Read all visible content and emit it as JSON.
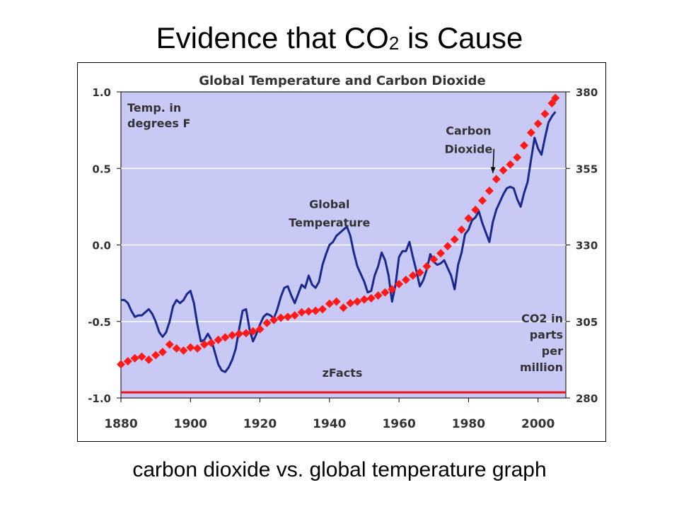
{
  "slide": {
    "title_prefix": "Evidence that CO",
    "title_sub": "2",
    "title_suffix": " is Cause",
    "caption": "carbon dioxide vs. global temperature graph"
  },
  "chart_data": {
    "type": "line",
    "title": "Global Temperature and Carbon Dioxide",
    "xlabel": "",
    "xlim": [
      1880,
      2008
    ],
    "x_ticks": [
      "1880",
      "1900",
      "1920",
      "1940",
      "1960",
      "1980",
      "2000"
    ],
    "y_left": {
      "label_lines": [
        "Temp. in",
        "degrees F"
      ],
      "ylim": [
        -1.0,
        1.0
      ],
      "ticks": [
        "1.0",
        "0.5",
        "0.0",
        "-0.5",
        "-1.0"
      ]
    },
    "y_right": {
      "label_lines": [
        "CO2 in",
        "parts",
        "per",
        "million"
      ],
      "ylim": [
        280,
        380
      ],
      "ticks": [
        "380",
        "355",
        "330",
        "305",
        "280"
      ]
    },
    "watermark": "zFacts",
    "colors": {
      "temperature": "#1a2a8c",
      "co2": "#ff1a1a",
      "baseline": "#ee1111",
      "plot_bg": "#c9c9f5",
      "grid": "#ffffff"
    },
    "annotations": [
      {
        "lines": [
          "Global",
          "Temperature"
        ],
        "year": 1940,
        "value": 0.24,
        "align": "middle"
      },
      {
        "lines": [
          "Carbon",
          "Dioxide"
        ],
        "year": 1980,
        "value": 0.72,
        "align": "middle",
        "arrow_to": [
          1987,
          0.47
        ]
      }
    ],
    "series": [
      {
        "name": "Global Temperature",
        "axis": "left",
        "x": [
          1880,
          1881,
          1882,
          1883,
          1884,
          1885,
          1886,
          1887,
          1888,
          1889,
          1890,
          1891,
          1892,
          1893,
          1894,
          1895,
          1896,
          1897,
          1898,
          1899,
          1900,
          1901,
          1902,
          1903,
          1904,
          1905,
          1906,
          1907,
          1908,
          1909,
          1910,
          1911,
          1912,
          1913,
          1914,
          1915,
          1916,
          1917,
          1918,
          1919,
          1920,
          1921,
          1922,
          1923,
          1924,
          1925,
          1926,
          1927,
          1928,
          1929,
          1930,
          1931,
          1932,
          1933,
          1934,
          1935,
          1936,
          1937,
          1938,
          1939,
          1940,
          1941,
          1942,
          1943,
          1944,
          1945,
          1946,
          1947,
          1948,
          1949,
          1950,
          1951,
          1952,
          1953,
          1954,
          1955,
          1956,
          1957,
          1958,
          1959,
          1960,
          1961,
          1962,
          1963,
          1964,
          1965,
          1966,
          1967,
          1968,
          1969,
          1970,
          1971,
          1972,
          1973,
          1974,
          1975,
          1976,
          1977,
          1978,
          1979,
          1980,
          1981,
          1982,
          1983,
          1984,
          1985,
          1986,
          1987,
          1988,
          1989,
          1990,
          1991,
          1992,
          1993,
          1994,
          1995,
          1996,
          1997,
          1998,
          1999,
          2000,
          2001,
          2002,
          2003,
          2004,
          2005
        ],
        "values": [
          -0.36,
          -0.36,
          -0.38,
          -0.43,
          -0.47,
          -0.46,
          -0.46,
          -0.44,
          -0.42,
          -0.45,
          -0.5,
          -0.57,
          -0.6,
          -0.57,
          -0.5,
          -0.4,
          -0.36,
          -0.38,
          -0.36,
          -0.32,
          -0.3,
          -0.38,
          -0.52,
          -0.63,
          -0.62,
          -0.58,
          -0.62,
          -0.7,
          -0.78,
          -0.82,
          -0.83,
          -0.8,
          -0.75,
          -0.68,
          -0.55,
          -0.43,
          -0.42,
          -0.55,
          -0.63,
          -0.58,
          -0.52,
          -0.47,
          -0.45,
          -0.46,
          -0.48,
          -0.42,
          -0.34,
          -0.28,
          -0.27,
          -0.33,
          -0.38,
          -0.32,
          -0.26,
          -0.28,
          -0.2,
          -0.26,
          -0.28,
          -0.24,
          -0.13,
          -0.06,
          0.0,
          0.02,
          0.06,
          0.08,
          0.1,
          0.12,
          0.06,
          -0.05,
          -0.14,
          -0.19,
          -0.24,
          -0.31,
          -0.3,
          -0.2,
          -0.14,
          -0.05,
          -0.1,
          -0.2,
          -0.37,
          -0.26,
          -0.08,
          -0.04,
          -0.04,
          0.02,
          -0.08,
          -0.17,
          -0.27,
          -0.23,
          -0.16,
          -0.06,
          -0.11,
          -0.13,
          -0.12,
          -0.1,
          -0.15,
          -0.2,
          -0.29,
          -0.13,
          -0.05,
          0.07,
          0.1,
          0.16,
          0.18,
          0.22,
          0.14,
          0.08,
          0.02,
          0.15,
          0.23,
          0.28,
          0.33,
          0.37,
          0.38,
          0.37,
          0.3,
          0.25,
          0.34,
          0.41,
          0.56,
          0.7,
          0.63,
          0.59,
          0.7,
          0.8,
          0.84,
          0.87
        ]
      },
      {
        "name": "Carbon Dioxide",
        "axis": "right",
        "x": [
          1880,
          1882,
          1884,
          1886,
          1888,
          1890,
          1892,
          1894,
          1896,
          1898,
          1900,
          1902,
          1904,
          1906,
          1908,
          1910,
          1912,
          1914,
          1916,
          1918,
          1920,
          1922,
          1924,
          1926,
          1928,
          1930,
          1932,
          1934,
          1936,
          1938,
          1940,
          1942,
          1944,
          1946,
          1948,
          1950,
          1952,
          1954,
          1956,
          1958,
          1960,
          1962,
          1964,
          1966,
          1968,
          1970,
          1972,
          1974,
          1976,
          1978,
          1980,
          1982,
          1984,
          1986,
          1988,
          1990,
          1992,
          1994,
          1996,
          1998,
          2000,
          2002,
          2004,
          2005
        ],
        "values": [
          291.0,
          292.0,
          293.0,
          293.5,
          292.5,
          294.0,
          295.0,
          297.5,
          296.2,
          295.5,
          296.5,
          296.2,
          297.5,
          298.0,
          299.0,
          299.8,
          300.5,
          301.0,
          301.2,
          301.8,
          302.5,
          304.5,
          305.5,
          306.2,
          306.5,
          307.0,
          308.0,
          308.3,
          308.5,
          309.0,
          310.8,
          311.5,
          309.5,
          311.0,
          311.5,
          312.2,
          312.6,
          313.5,
          314.5,
          315.5,
          317.2,
          318.6,
          320.0,
          321.0,
          323.0,
          325.3,
          327.3,
          329.6,
          331.8,
          335.0,
          338.7,
          341.5,
          344.5,
          347.7,
          351.5,
          354.4,
          356.3,
          358.6,
          362.5,
          366.7,
          369.6,
          372.8,
          376.3,
          378.0
        ]
      }
    ]
  }
}
